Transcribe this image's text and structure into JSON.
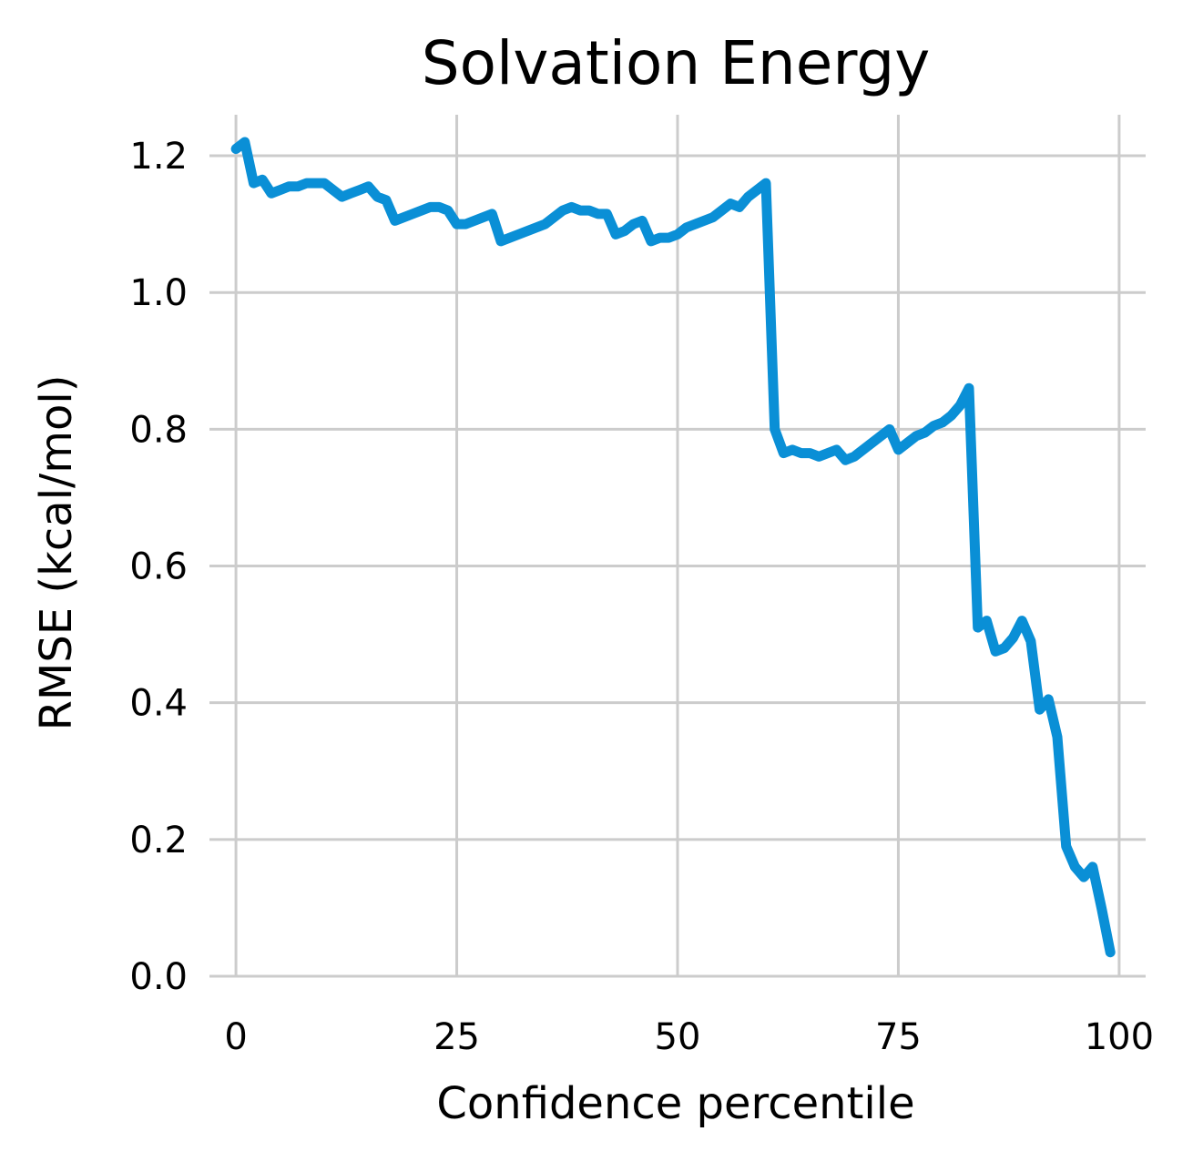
{
  "chart_data": {
    "type": "line",
    "title": "Solvation Energy",
    "xlabel": "Confidence percentile",
    "ylabel": "RMSE (kcal/mol)",
    "xlim": [
      -3,
      103
    ],
    "ylim": [
      0,
      1.26
    ],
    "xticks": [
      0,
      25,
      50,
      75,
      100
    ],
    "xtick_labels": [
      "0",
      "25",
      "50",
      "75",
      "100"
    ],
    "yticks": [
      0.0,
      0.2,
      0.4,
      0.6,
      0.8,
      1.0,
      1.2
    ],
    "ytick_labels": [
      "0.0",
      "0.2",
      "0.4",
      "0.6",
      "0.8",
      "1.0",
      "1.2"
    ],
    "grid": true,
    "series_color": "#0a8fd6",
    "series": [
      {
        "x": [
          0,
          1,
          2,
          3,
          4,
          5,
          6,
          7,
          8,
          9,
          10,
          11,
          12,
          13,
          14,
          15,
          16,
          17,
          18,
          19,
          20,
          21,
          22,
          23,
          24,
          25,
          26,
          27,
          28,
          29,
          30,
          31,
          32,
          33,
          34,
          35,
          36,
          37,
          38,
          39,
          40,
          41,
          42,
          43,
          44,
          45,
          46,
          47,
          48,
          49,
          50,
          51,
          52,
          53,
          54,
          55,
          56,
          57,
          58,
          59,
          60,
          61,
          62,
          63,
          64,
          65,
          66,
          67,
          68,
          69,
          70,
          71,
          72,
          73,
          74,
          75,
          76,
          77,
          78,
          79,
          80,
          81,
          82,
          83,
          84,
          85,
          86,
          87,
          88,
          89,
          90,
          91,
          92,
          93,
          94,
          95,
          96,
          97,
          98,
          99
        ],
        "values": [
          1.21,
          1.22,
          1.16,
          1.165,
          1.145,
          1.15,
          1.155,
          1.155,
          1.16,
          1.16,
          1.16,
          1.15,
          1.14,
          1.145,
          1.15,
          1.155,
          1.14,
          1.135,
          1.105,
          1.11,
          1.115,
          1.12,
          1.125,
          1.125,
          1.12,
          1.1,
          1.1,
          1.105,
          1.11,
          1.115,
          1.075,
          1.08,
          1.085,
          1.09,
          1.095,
          1.1,
          1.11,
          1.12,
          1.125,
          1.12,
          1.12,
          1.115,
          1.115,
          1.085,
          1.09,
          1.1,
          1.105,
          1.075,
          1.08,
          1.08,
          1.085,
          1.095,
          1.1,
          1.105,
          1.11,
          1.12,
          1.13,
          1.125,
          1.14,
          1.15,
          1.16,
          0.8,
          0.765,
          0.77,
          0.765,
          0.765,
          0.76,
          0.765,
          0.77,
          0.755,
          0.76,
          0.77,
          0.78,
          0.79,
          0.8,
          0.77,
          0.78,
          0.79,
          0.795,
          0.805,
          0.81,
          0.82,
          0.835,
          0.86,
          0.51,
          0.52,
          0.475,
          0.48,
          0.495,
          0.52,
          0.49,
          0.39,
          0.405,
          0.35,
          0.19,
          0.16,
          0.145,
          0.16,
          0.1,
          0.035
        ]
      }
    ]
  }
}
